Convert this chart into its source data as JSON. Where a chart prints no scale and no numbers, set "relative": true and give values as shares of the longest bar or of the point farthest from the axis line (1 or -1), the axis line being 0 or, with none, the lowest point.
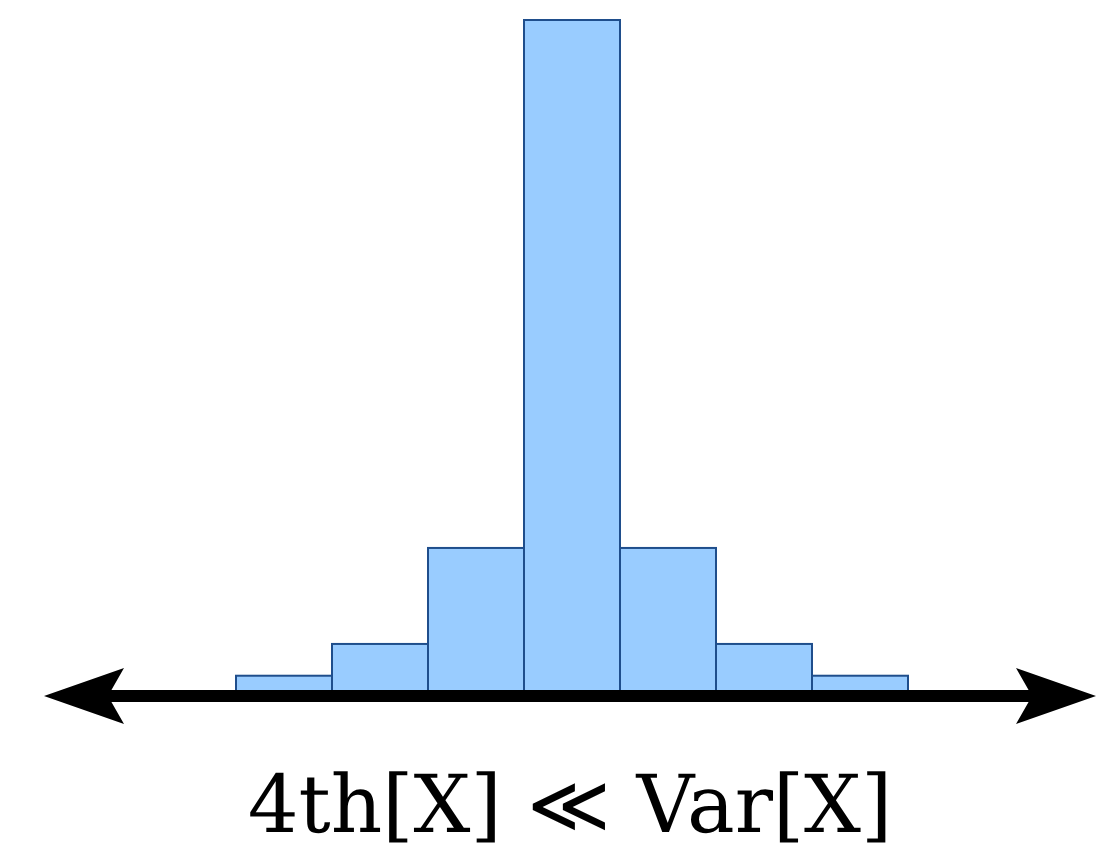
{
  "chart_data": {
    "type": "bar",
    "relative": true,
    "categories": [
      null,
      null,
      null,
      null,
      null,
      null,
      null
    ],
    "values": [
      0.03,
      0.077,
      0.219,
      1,
      0.219,
      0.077,
      0.03
    ],
    "color": "#99ccff",
    "xlabel": "4th[X] ≪ Var[X]"
  }
}
